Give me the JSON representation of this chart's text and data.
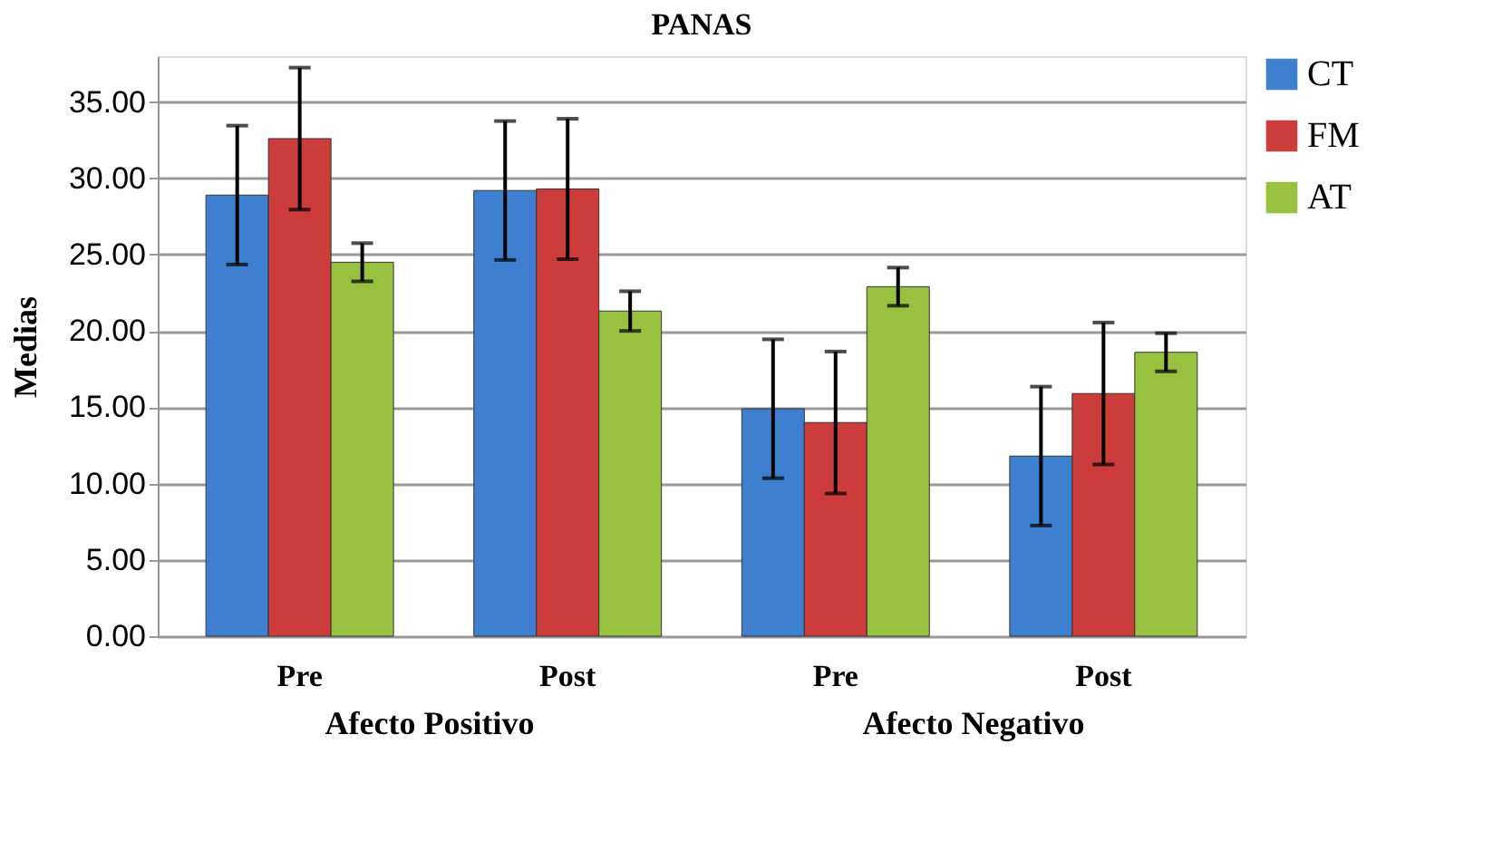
{
  "chart_data": {
    "type": "bar",
    "title": "PANAS",
    "ylabel": "Medias",
    "categories": [
      "Pre",
      "Post",
      "Pre",
      "Post"
    ],
    "annotations": [
      "Afecto Positivo",
      "Afecto Negativo"
    ],
    "series": [
      {
        "name": "CT",
        "color": "#3f7fcf",
        "values": [
          28.9,
          29.2,
          14.9,
          11.8
        ],
        "errors": [
          4.55,
          4.55,
          4.55,
          4.55
        ]
      },
      {
        "name": "FM",
        "color": "#cc3c3a",
        "values": [
          32.6,
          29.3,
          14.0,
          15.9
        ],
        "errors": [
          4.65,
          4.6,
          4.65,
          4.65
        ]
      },
      {
        "name": "AT",
        "color": "#99c140",
        "values": [
          24.5,
          21.3,
          22.9,
          18.6
        ],
        "errors": [
          1.25,
          1.3,
          1.25,
          1.25
        ]
      }
    ],
    "ylim": [
      0,
      38
    ],
    "yticks": [
      {
        "value": 0,
        "label": "0.00"
      },
      {
        "value": 5,
        "label": "5.00"
      },
      {
        "value": 10,
        "label": "10.00"
      },
      {
        "value": 15,
        "label": "15.00"
      },
      {
        "value": 20,
        "label": "20.00"
      },
      {
        "value": 25,
        "label": "25.00"
      },
      {
        "value": 30,
        "label": "30.00"
      },
      {
        "value": 35,
        "label": "35.00"
      }
    ],
    "grid": "y",
    "legend": "right"
  }
}
